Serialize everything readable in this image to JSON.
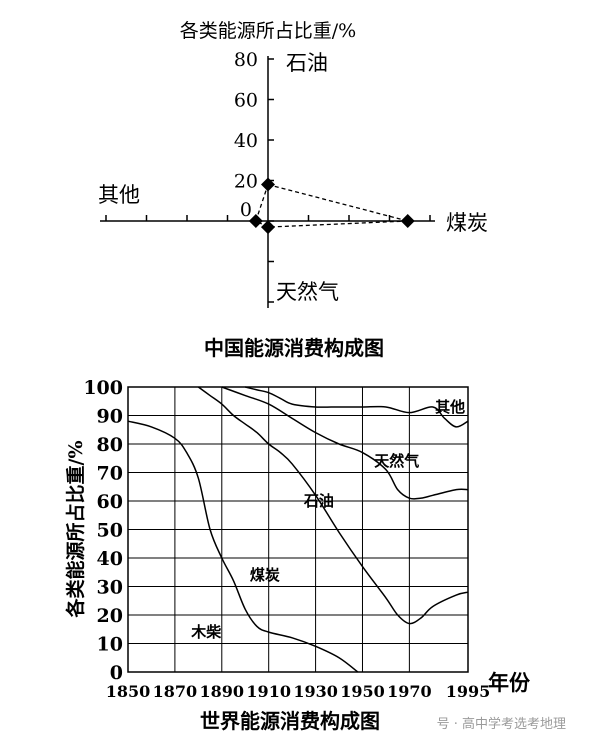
{
  "chart_data": [
    {
      "type": "scatter",
      "title": "中国能源消费构成图",
      "ylabel": "各类能源所占比重/%",
      "axis_arms": {
        "up": "石油",
        "down": "天然气",
        "left": "其他",
        "right": "煤炭"
      },
      "ylim": [
        0,
        80
      ],
      "y_ticks": [
        0,
        20,
        40,
        60,
        80
      ],
      "y_tick_labels": [
        "0",
        "20",
        "40",
        "60",
        "80"
      ],
      "points": [
        {
          "name": "石油",
          "value": 18
        },
        {
          "name": "煤炭",
          "value": 69
        },
        {
          "name": "天然气",
          "value": 3
        },
        {
          "name": "其他",
          "value": 6
        }
      ],
      "connector": "dashed",
      "grid": false
    },
    {
      "type": "area",
      "title": "世界能源消费构成图",
      "xlabel": "年份",
      "ylabel": "各类能源所占比重/%",
      "xlim": [
        1850,
        1995
      ],
      "ylim": [
        0,
        100
      ],
      "x_ticks": [
        1850,
        1870,
        1890,
        1910,
        1930,
        1950,
        1970,
        1995
      ],
      "x_tick_labels": [
        "1850",
        "1870",
        "1890",
        "1910",
        "1930",
        "1950",
        "1970",
        "1995"
      ],
      "y_ticks": [
        0,
        10,
        20,
        30,
        40,
        50,
        60,
        70,
        80,
        90,
        100
      ],
      "y_tick_labels": [
        "0",
        "10",
        "20",
        "30",
        "40",
        "50",
        "60",
        "70",
        "80",
        "90",
        "100"
      ],
      "grid": true,
      "curves": [
        {
          "name": "木柴",
          "label_at": [
            1877,
            14
          ],
          "x": [
            1850,
            1860,
            1870,
            1875,
            1880,
            1885,
            1890,
            1895,
            1900,
            1905,
            1910,
            1920,
            1930,
            1940,
            1948
          ],
          "y": [
            88,
            86,
            82,
            77,
            68,
            50,
            40,
            32,
            22,
            16,
            14,
            12,
            9,
            5,
            0
          ]
        },
        {
          "name": "煤炭",
          "label_at": [
            1902,
            34
          ],
          "x": [
            1880,
            1885,
            1890,
            1895,
            1900,
            1905,
            1910,
            1915,
            1920,
            1930,
            1940,
            1950,
            1960,
            1965,
            1970,
            1975,
            1980,
            1990,
            1995
          ],
          "y": [
            100,
            97,
            94,
            90,
            87,
            84,
            80,
            77,
            73,
            62,
            49,
            37,
            26,
            20,
            17,
            19,
            23,
            27,
            28
          ]
        },
        {
          "name": "石油",
          "label_at": [
            1925,
            60
          ],
          "x": [
            1890,
            1900,
            1910,
            1920,
            1930,
            1940,
            1950,
            1960,
            1965,
            1970,
            1975,
            1980,
            1990,
            1995
          ],
          "y": [
            100,
            97,
            94,
            89,
            84,
            80,
            77,
            71,
            64,
            61,
            61,
            62,
            64,
            64
          ]
        },
        {
          "name": "天然气",
          "label_at": [
            1955,
            74
          ],
          "x": [
            1900,
            1905,
            1910,
            1915,
            1920,
            1930,
            1940,
            1950,
            1960,
            1970,
            1980,
            1985,
            1990,
            1995
          ],
          "y": [
            100,
            99,
            98,
            96,
            94,
            93,
            93,
            93,
            93,
            91,
            93,
            89,
            86,
            88
          ]
        },
        {
          "name": "其他",
          "label_at": [
            1981,
            93
          ],
          "x": [
            1900,
            1910,
            1920,
            1930,
            1940,
            1950,
            1960,
            1970,
            1980,
            1990,
            1995
          ],
          "y": [
            100,
            100,
            100,
            100,
            100,
            100,
            100,
            100,
            100,
            100,
            100
          ]
        }
      ]
    }
  ],
  "watermark": "号 · 高中学考选考地理"
}
